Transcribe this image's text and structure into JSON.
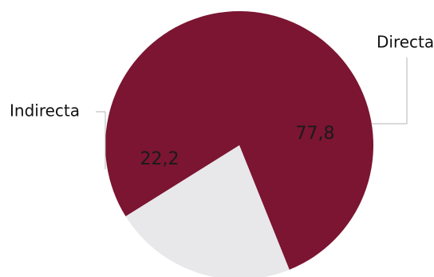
{
  "chart_data": {
    "type": "pie",
    "title": "",
    "labels": [
      "Directa",
      "Indirecta"
    ],
    "values": [
      77.8,
      22.2
    ],
    "value_labels": [
      "77,8",
      "22,2"
    ],
    "colors": [
      "#7b1532",
      "#e8e7ea"
    ],
    "value_label_color": "#1a1a1a",
    "leader_line_color": "#b5b5b5",
    "legend": "none"
  }
}
